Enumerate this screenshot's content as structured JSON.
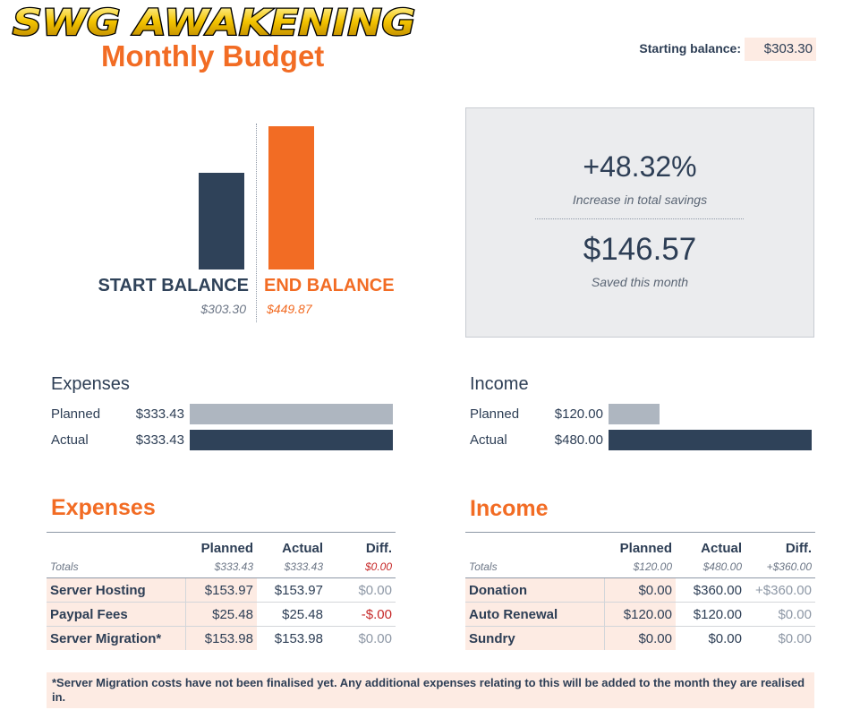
{
  "header": {
    "logo_text": "SWG AWAKENING",
    "title": "Monthly Budget",
    "starting_balance_label": "Starting balance:",
    "starting_balance_value": "$303.30"
  },
  "balance_chart": {
    "start_label": "START BALANCE",
    "end_label": "END BALANCE",
    "start_value": "$303.30",
    "end_value": "$449.87",
    "start_amount": 303.3,
    "end_amount": 449.87
  },
  "stats": {
    "increase_value": "+48.32%",
    "increase_label": "Increase in total savings",
    "saved_value": "$146.57",
    "saved_label": "Saved this month"
  },
  "expenses_summary": {
    "title": "Expenses",
    "planned_label": "Planned",
    "planned_value": "$333.43",
    "planned_amount": 333.43,
    "actual_label": "Actual",
    "actual_value": "$333.43",
    "actual_amount": 333.43
  },
  "income_summary": {
    "title": "Income",
    "planned_label": "Planned",
    "planned_value": "$120.00",
    "planned_amount": 120.0,
    "actual_label": "Actual",
    "actual_value": "$480.00",
    "actual_amount": 480.0
  },
  "expenses_table": {
    "title": "Expenses",
    "headers": [
      "",
      "Planned",
      "Actual",
      "Diff."
    ],
    "totals": {
      "label": "Totals",
      "planned": "$333.43",
      "actual": "$333.43",
      "diff": "$0.00"
    },
    "rows": [
      {
        "name": "Server Hosting",
        "planned": "$153.97",
        "actual": "$153.97",
        "diff": "$0.00"
      },
      {
        "name": "Paypal Fees",
        "planned": "$25.48",
        "actual": "$25.48",
        "diff": "-$.00"
      },
      {
        "name": "Server Migration*",
        "planned": "$153.98",
        "actual": "$153.98",
        "diff": "$0.00"
      }
    ]
  },
  "income_table": {
    "title": "Income",
    "headers": [
      "",
      "Planned",
      "Actual",
      "Diff."
    ],
    "totals": {
      "label": "Totals",
      "planned": "$120.00",
      "actual": "$480.00",
      "diff": "+$360.00"
    },
    "rows": [
      {
        "name": "Donation",
        "planned": "$0.00",
        "actual": "$360.00",
        "diff": "+$360.00"
      },
      {
        "name": "Auto Renewal",
        "planned": "$120.00",
        "actual": "$120.00",
        "diff": "$0.00"
      },
      {
        "name": "Sundry",
        "planned": "$0.00",
        "actual": "$0.00",
        "diff": "$0.00"
      }
    ]
  },
  "footnote": "*Server Migration costs have not been finalised yet. Any additional expenses relating to this will be added to the month they are realised in.",
  "colors": {
    "accent": "#f26c24",
    "navy": "#2f4259",
    "planned_bar": "#aeb6c0",
    "highlight_bg": "#fdebe3",
    "negative": "#c62828"
  }
}
